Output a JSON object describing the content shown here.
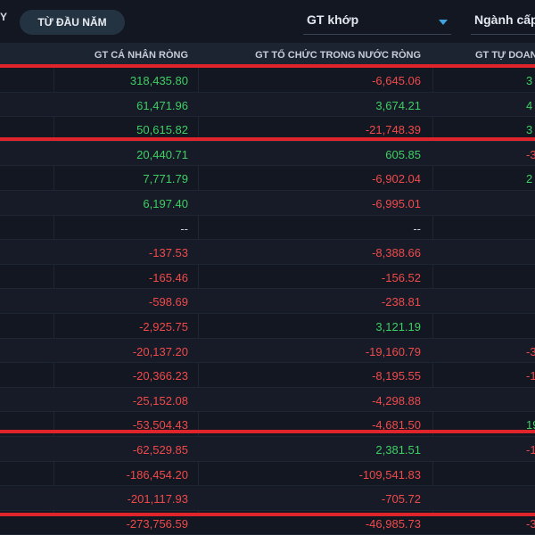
{
  "topbar": {
    "left_tab_fragment": "Y",
    "active_tab": "TỪ ĐẦU NĂM",
    "value_select": "GT khớp",
    "sector_select": "Ngành cấp"
  },
  "columns": [
    "GT CÁ NHÂN RÒNG",
    "GT TỔ CHỨC TRONG NƯỚC RÒNG",
    "GT TỰ DOANH"
  ],
  "rows": [
    {
      "c1": "318,435.80",
      "c2": "-6,645.06",
      "c3": "3"
    },
    {
      "c1": "61,471.96",
      "c2": "3,674.21",
      "c3": "4"
    },
    {
      "c1": "50,615.82",
      "c2": "-21,748.39",
      "c3": "3"
    },
    {
      "c1": "20,440.71",
      "c2": "605.85",
      "c3": "-3"
    },
    {
      "c1": "7,771.79",
      "c2": "-6,902.04",
      "c3": "2"
    },
    {
      "c1": "6,197.40",
      "c2": "-6,995.01",
      "c3": ""
    },
    {
      "c1": "--",
      "c2": "--",
      "c3": ""
    },
    {
      "c1": "-137.53",
      "c2": "-8,388.66",
      "c3": ""
    },
    {
      "c1": "-165.46",
      "c2": "-156.52",
      "c3": ""
    },
    {
      "c1": "-598.69",
      "c2": "-238.81",
      "c3": ""
    },
    {
      "c1": "-2,925.75",
      "c2": "3,121.19",
      "c3": ""
    },
    {
      "c1": "-20,137.20",
      "c2": "-19,160.79",
      "c3": "-3"
    },
    {
      "c1": "-20,366.23",
      "c2": "-8,195.55",
      "c3": "-1"
    },
    {
      "c1": "-25,152.08",
      "c2": "-4,298.88",
      "c3": ""
    },
    {
      "c1": "-53,504.43",
      "c2": "-4,681.50",
      "c3": "19"
    },
    {
      "c1": "-62,529.85",
      "c2": "2,381.51",
      "c3": "-1"
    },
    {
      "c1": "-186,454.20",
      "c2": "-109,541.83",
      "c3": ""
    },
    {
      "c1": "-201,117.93",
      "c2": "-705.72",
      "c3": ""
    },
    {
      "c1": "-273,756.59",
      "c2": "-46,985.73",
      "c3": "-3"
    }
  ],
  "colors": {
    "positive": "#3ecf63",
    "negative": "#f04a4a",
    "highlight": "#e0242b",
    "accent": "#3fa4e0"
  }
}
